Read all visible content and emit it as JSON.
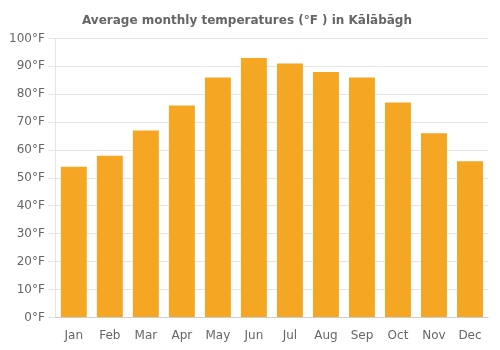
{
  "chart_data": {
    "type": "bar",
    "title": "Average monthly temperatures (°F ) in Kālābāgh",
    "categories": [
      "Jan",
      "Feb",
      "Mar",
      "Apr",
      "May",
      "Jun",
      "Jul",
      "Aug",
      "Sep",
      "Oct",
      "Nov",
      "Dec"
    ],
    "values": [
      54,
      58,
      67,
      76,
      86,
      93,
      91,
      88,
      86,
      77,
      66,
      56
    ],
    "color": "#F5A623",
    "ylim": [
      0,
      100
    ],
    "yticks": [
      {
        "value": 0,
        "label": "0°F"
      },
      {
        "value": 10,
        "label": "10°F"
      },
      {
        "value": 20,
        "label": "20°F"
      },
      {
        "value": 30,
        "label": "30°F"
      },
      {
        "value": 40,
        "label": "40°F"
      },
      {
        "value": 50,
        "label": "50°F"
      },
      {
        "value": 60,
        "label": "60°F"
      },
      {
        "value": 70,
        "label": "70°F"
      },
      {
        "value": 80,
        "label": "80°F"
      },
      {
        "value": 90,
        "label": "90°F"
      },
      {
        "value": 100,
        "label": "100°F"
      }
    ],
    "grid": true
  }
}
